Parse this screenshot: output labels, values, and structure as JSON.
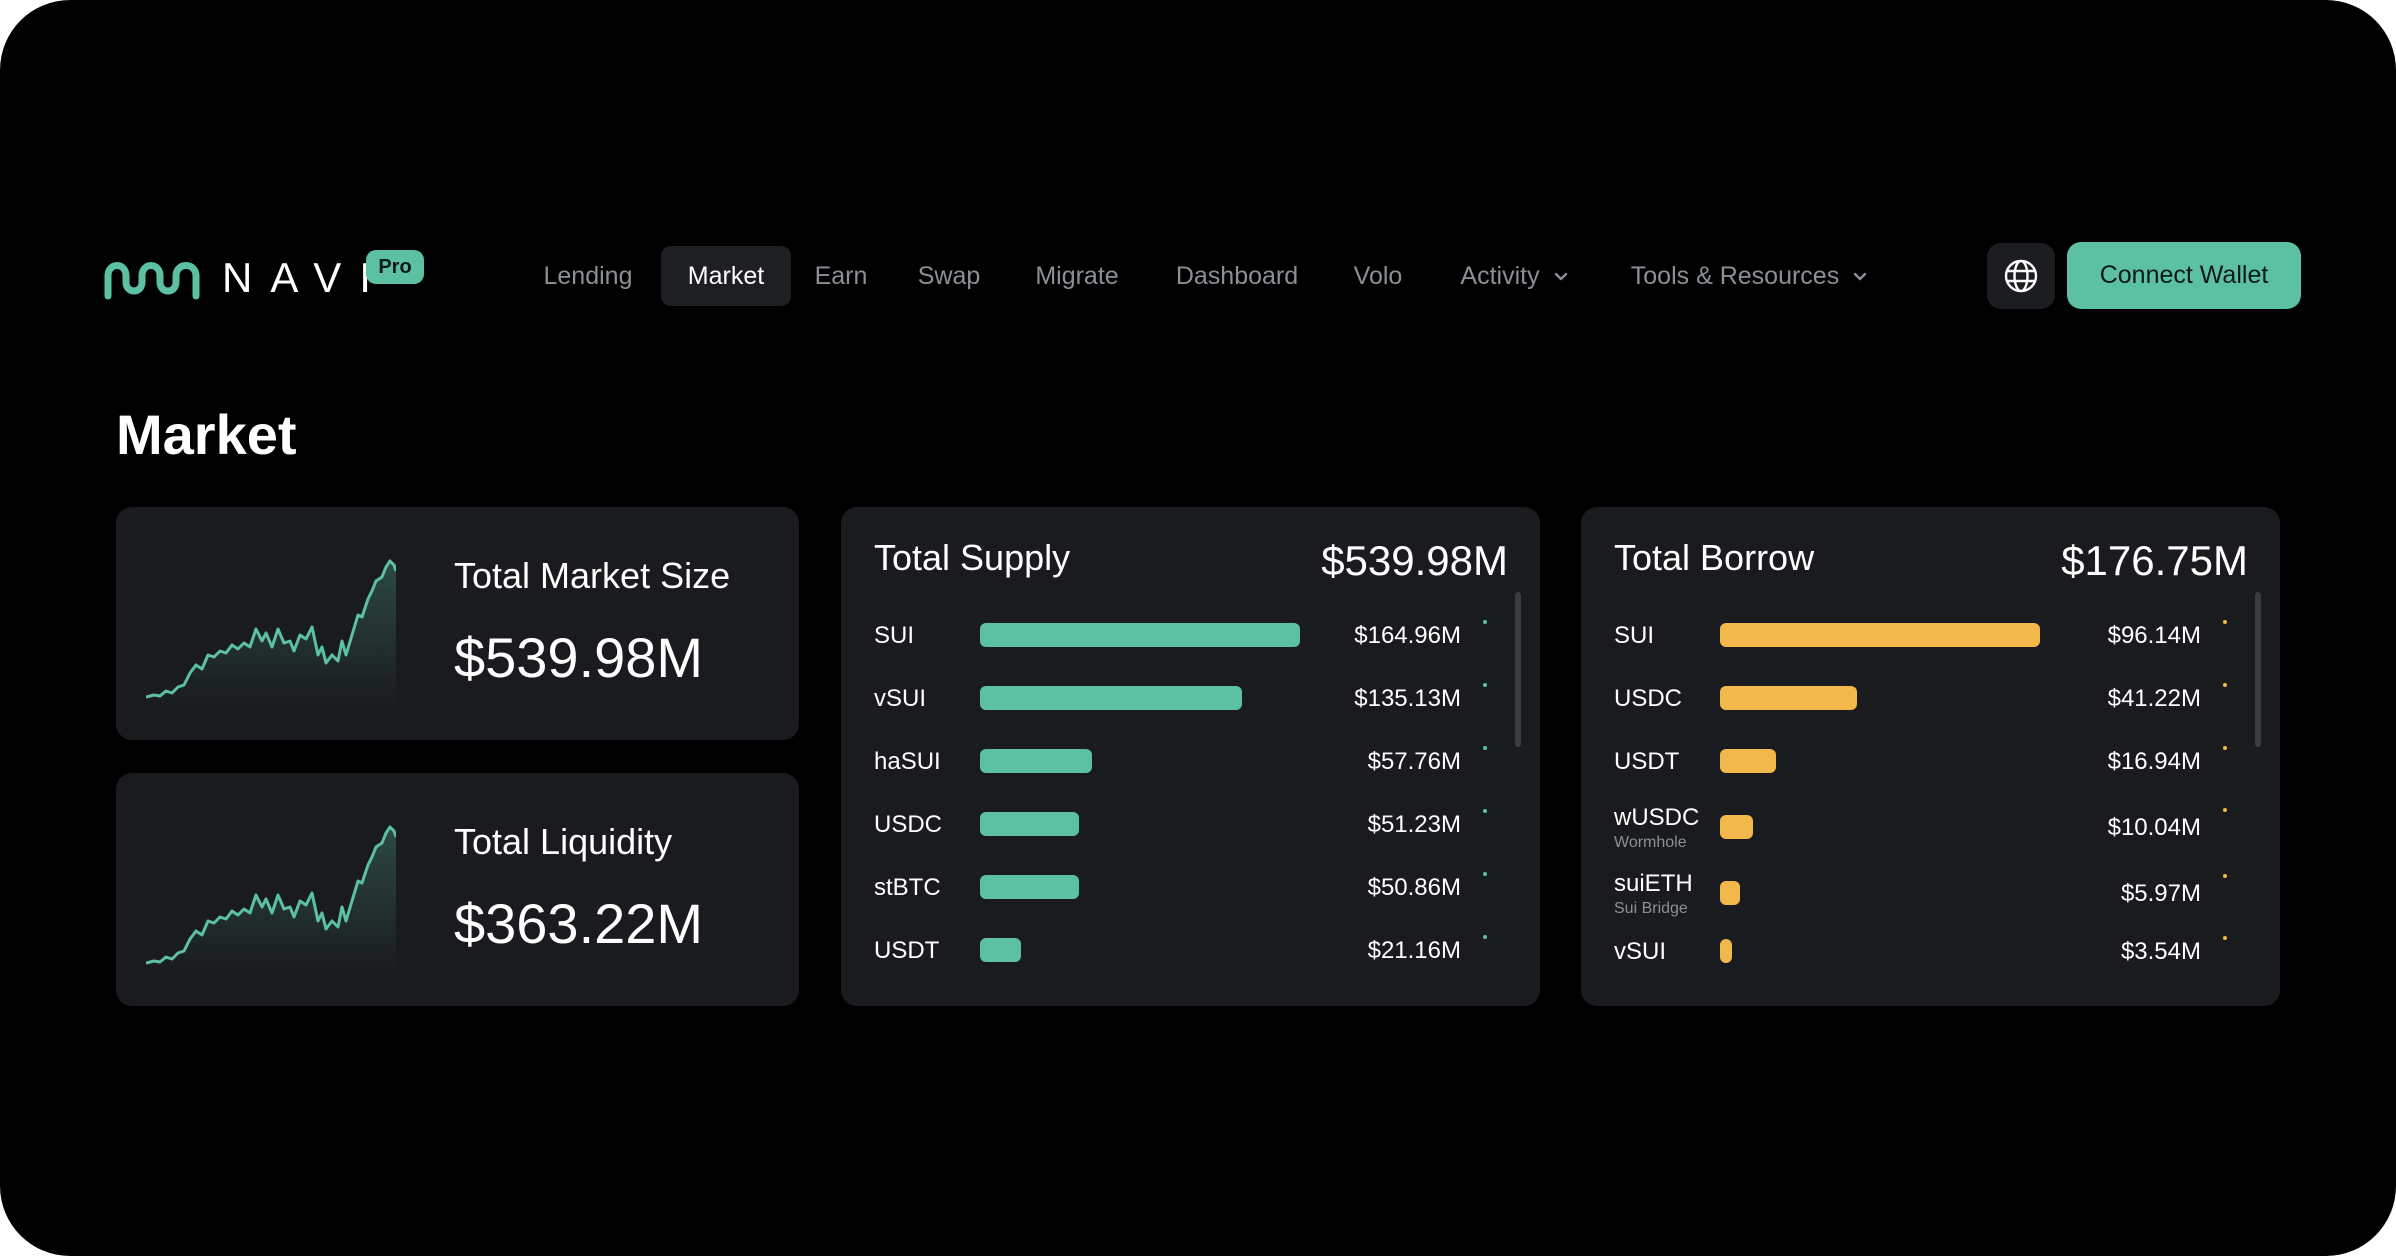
{
  "brand": {
    "name": "NAVI",
    "badge": "Pro",
    "accent": "#5bc1a2",
    "borrow_color": "#f2b84b"
  },
  "nav": {
    "items": [
      {
        "label": "Lending",
        "active": false
      },
      {
        "label": "Market",
        "active": true
      },
      {
        "label": "Earn",
        "active": false
      },
      {
        "label": "Swap",
        "active": false
      },
      {
        "label": "Migrate",
        "active": false
      },
      {
        "label": "Dashboard",
        "active": false
      },
      {
        "label": "Volo",
        "active": false
      },
      {
        "label": "Activity",
        "active": false,
        "dropdown": true
      },
      {
        "label": "Tools & Resources",
        "active": false,
        "dropdown": true
      }
    ],
    "language_icon": "globe-icon",
    "connect_label": "Connect Wallet"
  },
  "page": {
    "title": "Market"
  },
  "stats": [
    {
      "label": "Total Market Size",
      "value": "$539.98M"
    },
    {
      "label": "Total Liquidity",
      "value": "$363.22M"
    }
  ],
  "supply": {
    "title": "Total Supply",
    "total": "$539.98M",
    "rows": [
      {
        "name": "SUI",
        "value": "$164.96M",
        "amount": 164.96
      },
      {
        "name": "vSUI",
        "value": "$135.13M",
        "amount": 135.13
      },
      {
        "name": "haSUI",
        "value": "$57.76M",
        "amount": 57.76
      },
      {
        "name": "USDC",
        "value": "$51.23M",
        "amount": 51.23
      },
      {
        "name": "stBTC",
        "value": "$50.86M",
        "amount": 50.86
      },
      {
        "name": "USDT",
        "value": "$21.16M",
        "amount": 21.16
      }
    ]
  },
  "borrow": {
    "title": "Total Borrow",
    "total": "$176.75M",
    "rows": [
      {
        "name": "SUI",
        "sub": "",
        "value": "$96.14M",
        "amount": 96.14
      },
      {
        "name": "USDC",
        "sub": "",
        "value": "$41.22M",
        "amount": 41.22
      },
      {
        "name": "USDT",
        "sub": "",
        "value": "$16.94M",
        "amount": 16.94
      },
      {
        "name": "wUSDC",
        "sub": "Wormhole",
        "value": "$10.04M",
        "amount": 10.04
      },
      {
        "name": "suiETH",
        "sub": "Sui Bridge",
        "value": "$5.97M",
        "amount": 5.97
      },
      {
        "name": "vSUI",
        "sub": "",
        "value": "$3.54M",
        "amount": 3.54
      }
    ]
  }
}
